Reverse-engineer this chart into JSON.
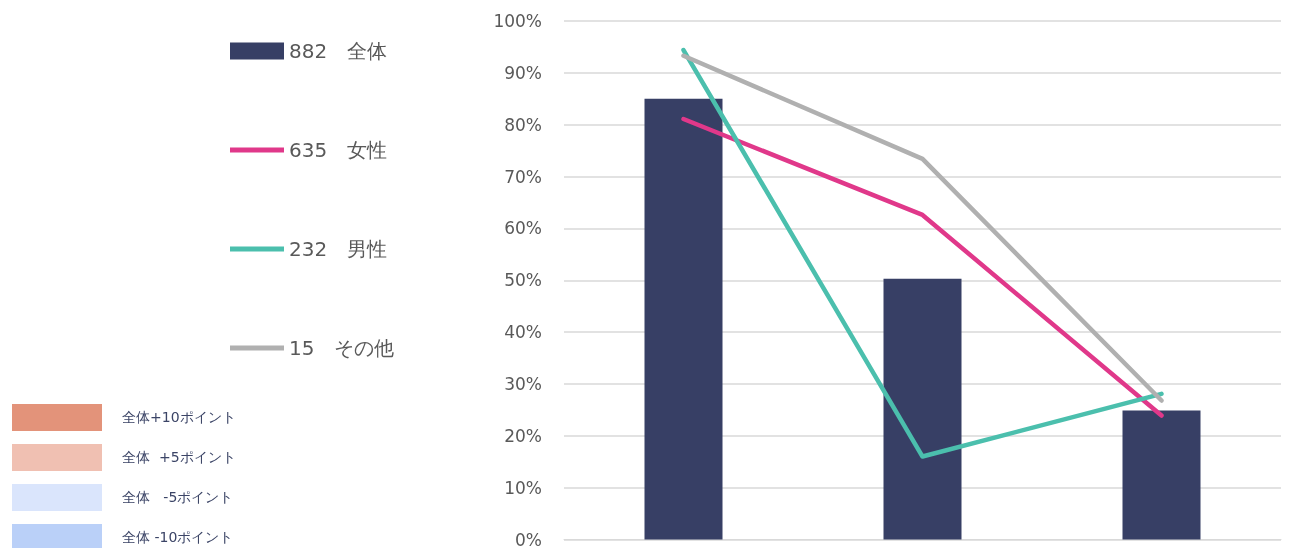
{
  "chart_data": {
    "type": "bar",
    "categories": [
      null,
      null,
      null
    ],
    "series": [
      {
        "name": "882　全体",
        "color": "#373f65",
        "values": [
          85,
          50.3,
          24.9
        ]
      },
      {
        "name": "635　女性",
        "type": "line",
        "color": "#e0388a",
        "values": [
          81.1,
          62.6,
          23.9
        ]
      },
      {
        "name": "232　男性",
        "type": "line",
        "color": "#4bbfad",
        "values": [
          94.4,
          16,
          28.1
        ]
      },
      {
        "name": "15　その他",
        "type": "line",
        "color": "#b0b0b0",
        "values": [
          93.3,
          73.4,
          26.8
        ]
      }
    ],
    "annotations": [
      "全体+10ポイント",
      "全体  +5ポイント",
      "全体   -5ポイント",
      "全体 -10ポイント"
    ],
    "ylim": [
      0,
      100
    ],
    "yticks": [
      {
        "value": 0,
        "label": "0%"
      },
      {
        "value": 10,
        "label": "10%"
      },
      {
        "value": 20,
        "label": "20%"
      },
      {
        "value": 30,
        "label": "30%"
      },
      {
        "value": 40,
        "label": "40%"
      },
      {
        "value": 50,
        "label": "50%"
      },
      {
        "value": 60,
        "label": "60%"
      },
      {
        "value": 70,
        "label": "70%"
      },
      {
        "value": 80,
        "label": "80%"
      },
      {
        "value": 90,
        "label": "90%"
      },
      {
        "value": 100,
        "label": "100%"
      }
    ],
    "grid": "y",
    "legend": "left",
    "marker": "none",
    "line_style": "solid"
  }
}
